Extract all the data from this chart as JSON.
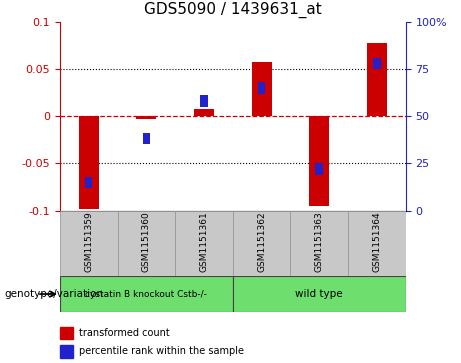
{
  "title": "GDS5090 / 1439631_at",
  "samples": [
    "GSM1151359",
    "GSM1151360",
    "GSM1151361",
    "GSM1151362",
    "GSM1151363",
    "GSM1151364"
  ],
  "transformed_count": [
    -0.098,
    -0.003,
    0.008,
    0.057,
    -0.095,
    0.077
  ],
  "percentile_rank": [
    15,
    38,
    58,
    65,
    22,
    78
  ],
  "ylim_left": [
    -0.1,
    0.1
  ],
  "ylim_right": [
    0,
    100
  ],
  "yticks_left": [
    -0.1,
    -0.05,
    0,
    0.05,
    0.1
  ],
  "yticks_right": [
    0,
    25,
    50,
    75,
    100
  ],
  "bar_color_red": "#CC0000",
  "bar_color_blue": "#2222CC",
  "hline_color": "#CC0000",
  "dotted_color": "#000000",
  "plot_bg": "#FFFFFF",
  "genotype_label": "genotype/variation",
  "group1_label": "cystatin B knockout Cstb-/-",
  "group2_label": "wild type",
  "group_color": "#6EDE6E",
  "sample_box_color": "#C8C8C8",
  "legend_red": "transformed count",
  "legend_blue": "percentile rank within the sample",
  "red_bar_width": 0.35,
  "blue_square_size": 0.008
}
